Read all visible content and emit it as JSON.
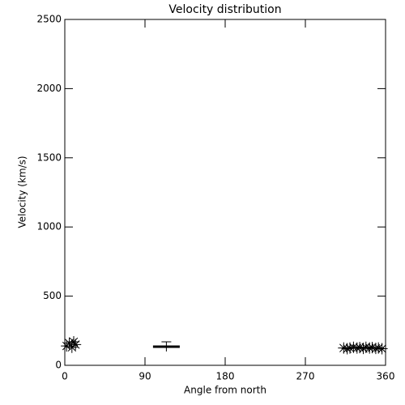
{
  "chart_data": {
    "type": "scatter",
    "title": "Velocity distribution",
    "x_label": "Angle from north",
    "y_label": "Velocity (km/s)",
    "xlim": [
      0,
      360
    ],
    "xticks": [
      0,
      90,
      180,
      270,
      360
    ],
    "ylim": [
      0,
      2500
    ],
    "yticks": [
      0,
      500,
      1000,
      1500,
      2000,
      2500
    ],
    "color": "#000000",
    "x": [
      2,
      5,
      8,
      10,
      12,
      313,
      317,
      320,
      324,
      328,
      331,
      335,
      338,
      342,
      345,
      349,
      352,
      356
    ],
    "values": [
      140,
      160,
      130,
      170,
      150,
      125,
      120,
      125,
      130,
      125,
      128,
      122,
      130,
      125,
      128,
      122,
      125,
      120
    ],
    "error_bar": {
      "x": 114,
      "value": 135,
      "error": 35,
      "xerr": 15
    }
  }
}
